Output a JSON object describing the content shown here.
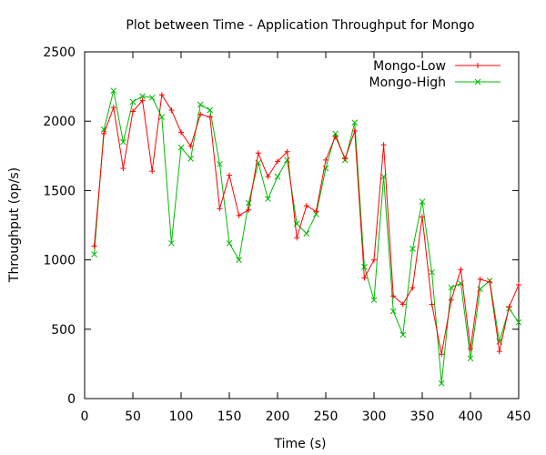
{
  "chart_data": {
    "type": "line",
    "title": "Plot between Time - Application Throughput for Mongo",
    "xlabel": "Time (s)",
    "ylabel": "Throughput (op/s)",
    "xlim": [
      0,
      450
    ],
    "ylim": [
      0,
      2500
    ],
    "xticks": [
      0,
      50,
      100,
      150,
      200,
      250,
      300,
      350,
      400,
      450
    ],
    "yticks": [
      0,
      500,
      1000,
      1500,
      2000,
      2500
    ],
    "grid": false,
    "legend_position": "top-right",
    "series": [
      {
        "name": "Mongo-Low",
        "color": "#ff0000",
        "marker": "plus",
        "x": [
          10,
          20,
          30,
          40,
          50,
          60,
          70,
          80,
          90,
          100,
          110,
          120,
          130,
          140,
          150,
          160,
          170,
          180,
          190,
          200,
          210,
          220,
          230,
          240,
          250,
          260,
          270,
          280,
          290,
          300,
          310,
          320,
          330,
          340,
          350,
          360,
          370,
          380,
          390,
          400,
          410,
          420,
          430,
          440,
          450
        ],
        "y": [
          1100,
          1910,
          2100,
          1660,
          2070,
          2150,
          1640,
          2190,
          2080,
          1920,
          1820,
          2050,
          2030,
          1370,
          1610,
          1320,
          1360,
          1770,
          1600,
          1710,
          1780,
          1160,
          1390,
          1350,
          1720,
          1890,
          1730,
          1930,
          870,
          1000,
          1830,
          740,
          680,
          800,
          1310,
          680,
          320,
          710,
          930,
          360,
          860,
          840,
          340,
          660,
          820
        ]
      },
      {
        "name": "Mongo-High",
        "color": "#00bb00",
        "marker": "x",
        "x": [
          10,
          20,
          30,
          40,
          50,
          60,
          70,
          80,
          90,
          100,
          110,
          120,
          130,
          140,
          150,
          160,
          170,
          180,
          190,
          200,
          210,
          220,
          230,
          240,
          250,
          260,
          270,
          280,
          290,
          300,
          310,
          320,
          330,
          340,
          350,
          360,
          370,
          380,
          390,
          400,
          410,
          420,
          430,
          440,
          450
        ],
        "y": [
          1040,
          1940,
          2220,
          1850,
          2140,
          2180,
          2170,
          2030,
          1120,
          1810,
          1730,
          2120,
          2080,
          1690,
          1120,
          1000,
          1410,
          1700,
          1440,
          1600,
          1720,
          1260,
          1190,
          1330,
          1660,
          1910,
          1720,
          1990,
          950,
          710,
          1600,
          630,
          460,
          1080,
          1420,
          910,
          110,
          800,
          830,
          290,
          790,
          850,
          410,
          650,
          550
        ]
      }
    ]
  }
}
